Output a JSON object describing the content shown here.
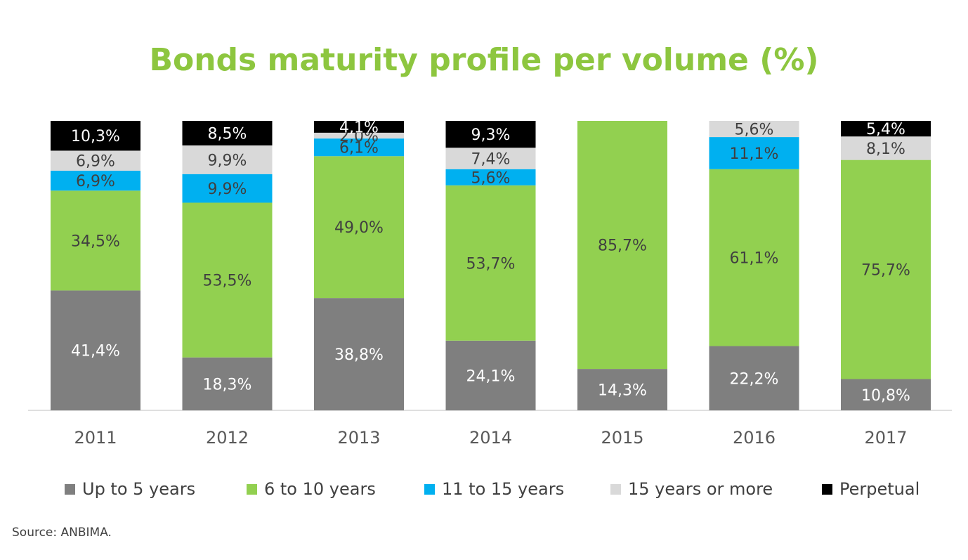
{
  "title": "Bonds maturity profile per volume (%)",
  "source": "Source: ANBIMA.",
  "colors": {
    "title": "#8dc63f",
    "text_dark": "#404040",
    "axis_text": "#595959"
  },
  "chart_data": {
    "type": "bar",
    "stacked": true,
    "title": "Bonds maturity profile per volume (%)",
    "xlabel": "",
    "ylabel": "",
    "ylim": [
      0,
      100
    ],
    "grid": false,
    "legend_position": "bottom",
    "categories": [
      "2011",
      "2012",
      "2013",
      "2014",
      "2015",
      "2016",
      "2017"
    ],
    "series": [
      {
        "name": "Up to 5 years",
        "color": "#7f7f7f",
        "label_color": "#ffffff",
        "values": [
          41.4,
          18.3,
          38.8,
          24.1,
          14.3,
          22.2,
          10.8
        ],
        "labels": [
          "41,4%",
          "18,3%",
          "38,8%",
          "24,1%",
          "14,3%",
          "22,2%",
          "10,8%"
        ]
      },
      {
        "name": "6 to 10 years",
        "color": "#92d050",
        "label_color": "#404040",
        "values": [
          34.5,
          53.5,
          49.0,
          53.7,
          85.7,
          61.1,
          75.7
        ],
        "labels": [
          "34,5%",
          "53,5%",
          "49,0%",
          "53,7%",
          "85,7%",
          "61,1%",
          "75,7%"
        ]
      },
      {
        "name": "11 to 15 years",
        "color": "#00b0f0",
        "label_color": "#404040",
        "values": [
          6.9,
          9.9,
          6.1,
          5.6,
          null,
          11.1,
          null
        ],
        "labels": [
          "6,9%",
          "9,9%",
          "6,1%",
          "5,6%",
          null,
          "11,1%",
          null
        ]
      },
      {
        "name": "15 years or more",
        "color": "#d9d9d9",
        "label_color": "#404040",
        "values": [
          6.9,
          9.9,
          2.0,
          7.4,
          null,
          5.6,
          8.1
        ],
        "labels": [
          "6,9%",
          "9,9%",
          "2,0%",
          "7,4%",
          null,
          "5,6%",
          "8,1%"
        ]
      },
      {
        "name": "Perpetual",
        "color": "#000000",
        "label_color": "#ffffff",
        "values": [
          10.3,
          8.5,
          4.1,
          9.3,
          null,
          null,
          5.4
        ],
        "labels": [
          "10,3%",
          "8,5%",
          "4,1%",
          "9,3%",
          null,
          null,
          "5,4%"
        ]
      }
    ]
  }
}
